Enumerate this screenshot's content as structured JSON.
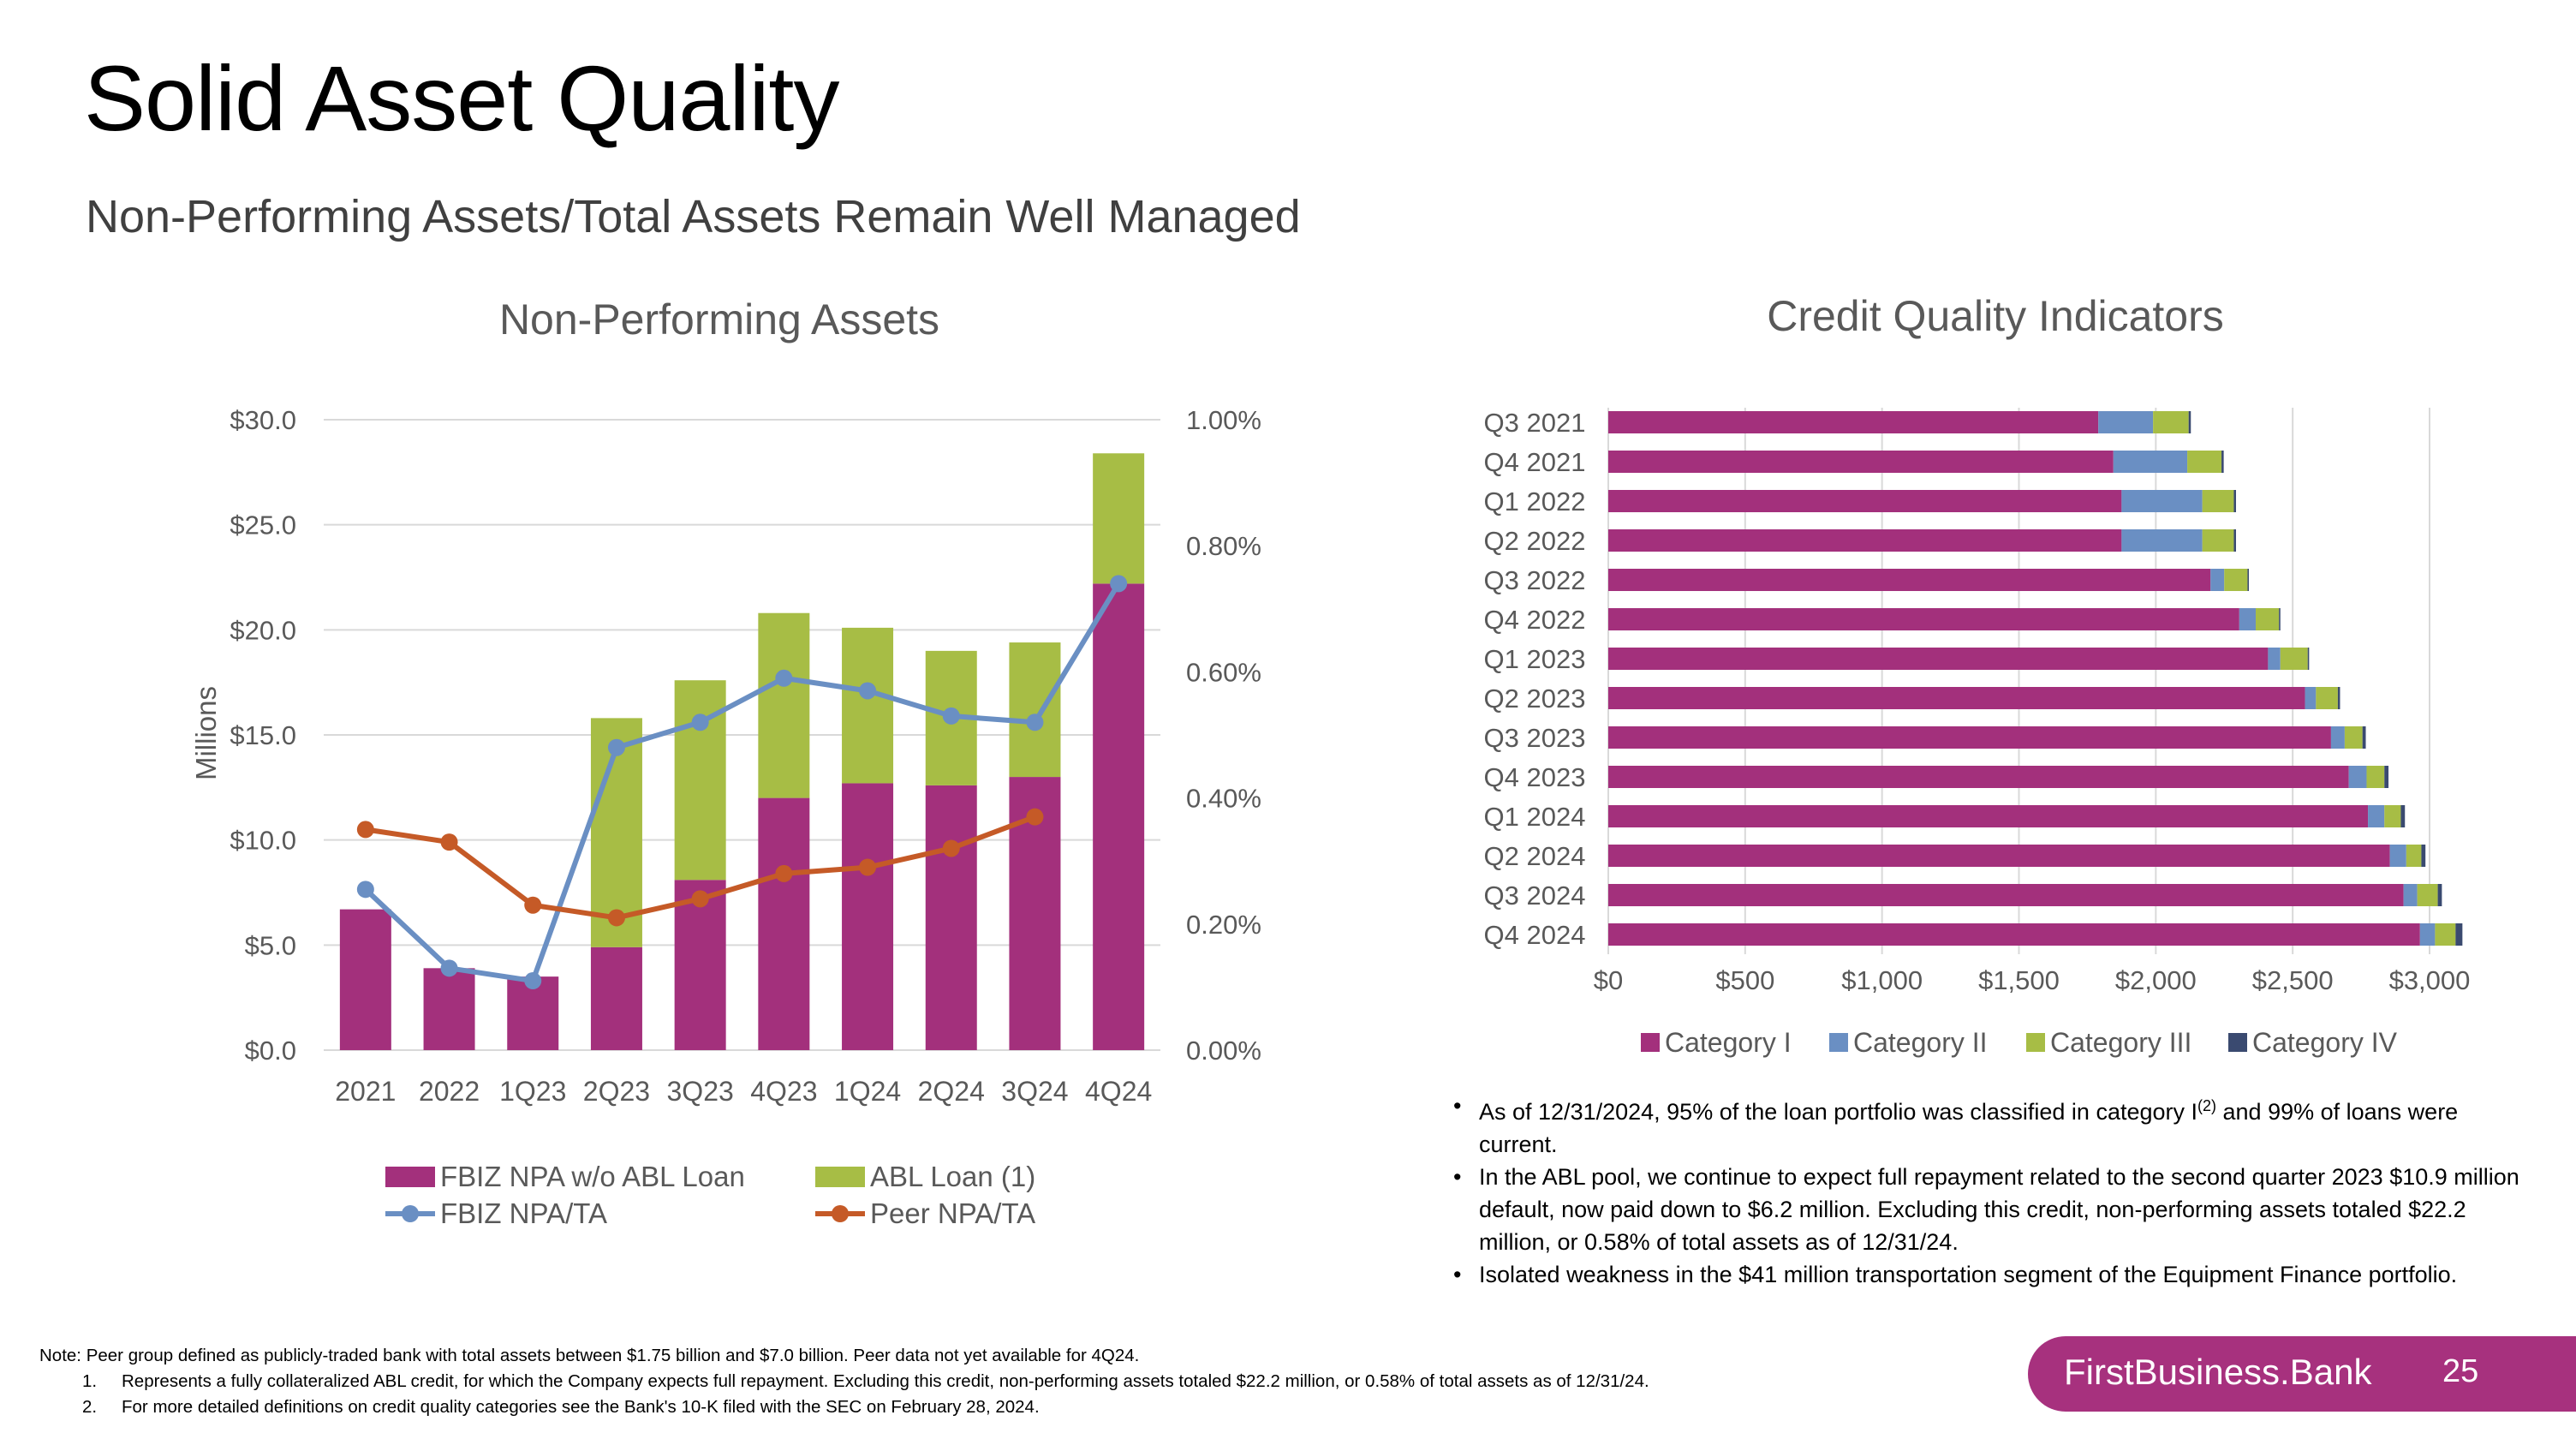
{
  "page": {
    "title": "Solid Asset Quality",
    "subtitle": "Non-Performing Assets/Total Assets Remain Well Managed",
    "page_number": "25",
    "brand": "FirstBusiness.Bank"
  },
  "colors": {
    "magenta": "#a3307c",
    "green": "#a7bd45",
    "blue": "#6a8fc3",
    "orange": "#c55a27",
    "navy": "#3a4a70",
    "brand": "#a7317e"
  },
  "bullets": {
    "b1_pre": "As of 12/31/2024, 95% of the loan portfolio was classified in category I",
    "b1_sup": "(2)",
    "b1_post": " and 99% of loans were current.",
    "b2": "In the ABL pool, we continue to expect full repayment related to the second quarter 2023 $10.9 million default, now paid down to $6.2 million. Excluding this credit, non-performing assets totaled $22.2 million, or 0.58% of total assets as of 12/31/24.",
    "b3": "Isolated weakness in the $41 million transportation segment of the Equipment Finance portfolio."
  },
  "notes": {
    "note": "Note: Peer group defined as publicly-traded bank with total assets between $1.75 billion and $7.0 billion. Peer data not yet available for 4Q24.",
    "n1_num": "1.",
    "n1": "Represents a fully collateralized ABL credit, for which the Company expects full repayment. Excluding this credit, non-performing assets totaled $22.2 million, or 0.58% of total assets as of 12/31/24.",
    "n2_num": "2.",
    "n2": "For more detailed definitions on credit quality categories see the Bank's 10-K filed with the SEC on February 28, 2024."
  },
  "chart_data": [
    {
      "type": "bar",
      "stacked": true,
      "title": "Non-Performing Assets",
      "ylabel": "Millions",
      "categories": [
        "2021",
        "2022",
        "1Q23",
        "2Q23",
        "3Q23",
        "4Q23",
        "1Q24",
        "2Q24",
        "3Q24",
        "4Q24"
      ],
      "ylim": [
        0,
        30
      ],
      "y_ticks": [
        "$0.0",
        "$5.0",
        "$10.0",
        "$15.0",
        "$20.0",
        "$25.0",
        "$30.0"
      ],
      "y2lim": [
        0,
        1.0
      ],
      "y2_ticks": [
        "0.00%",
        "0.20%",
        "0.40%",
        "0.60%",
        "0.80%",
        "1.00%"
      ],
      "series": [
        {
          "name": "FBIZ NPA w/o ABL Loan",
          "kind": "bar",
          "color": "#a3307c",
          "values": [
            6.7,
            3.9,
            3.5,
            4.9,
            8.1,
            12.0,
            12.7,
            12.6,
            13.0,
            22.2
          ]
        },
        {
          "name": "ABL Loan (1)",
          "kind": "bar",
          "color": "#a7bd45",
          "values": [
            0,
            0,
            0,
            10.9,
            9.5,
            8.8,
            7.4,
            6.4,
            6.4,
            6.2
          ]
        },
        {
          "name": "FBIZ NPA/TA",
          "kind": "line",
          "axis": "y2",
          "color": "#6a8fc3",
          "values": [
            0.255,
            0.13,
            0.11,
            0.48,
            0.52,
            0.59,
            0.57,
            0.53,
            0.52,
            0.74
          ]
        },
        {
          "name": "Peer NPA/TA",
          "kind": "line",
          "axis": "y2",
          "color": "#c55a27",
          "values": [
            0.35,
            0.33,
            0.23,
            0.21,
            0.24,
            0.28,
            0.29,
            0.32,
            0.37,
            null
          ]
        }
      ],
      "legend": "bottom"
    },
    {
      "type": "bar",
      "orientation": "horizontal",
      "stacked": true,
      "title": "Credit Quality Indicators",
      "categories": [
        "Q3 2021",
        "Q4 2021",
        "Q1 2022",
        "Q2 2022",
        "Q3 2022",
        "Q4 2022",
        "Q1 2023",
        "Q2 2023",
        "Q3 2023",
        "Q4 2023",
        "Q1 2024",
        "Q2 2024",
        "Q3 2024",
        "Q4 2024"
      ],
      "xlim": [
        0,
        3000
      ],
      "x_ticks": [
        "$0",
        "$500",
        "$1,000",
        "$1,500",
        "$2,000",
        "$2,500",
        "$3,000"
      ],
      "series": [
        {
          "name": "Category I",
          "color": "#a3307c",
          "values": [
            1790,
            1845,
            1875,
            1875,
            2200,
            2305,
            2410,
            2545,
            2640,
            2705,
            2775,
            2855,
            2905,
            2965
          ]
        },
        {
          "name": "Category II",
          "color": "#6a8fc3",
          "values": [
            200,
            270,
            295,
            295,
            50,
            60,
            45,
            40,
            50,
            65,
            60,
            60,
            50,
            55
          ]
        },
        {
          "name": "Category III",
          "color": "#a7bd45",
          "values": [
            130,
            125,
            115,
            115,
            85,
            85,
            100,
            80,
            65,
            65,
            60,
            55,
            75,
            75
          ]
        },
        {
          "name": "Category IV",
          "color": "#3a4a70",
          "values": [
            8,
            8,
            8,
            8,
            5,
            5,
            5,
            8,
            12,
            15,
            15,
            15,
            15,
            25
          ]
        }
      ],
      "legend": "bottom"
    }
  ]
}
